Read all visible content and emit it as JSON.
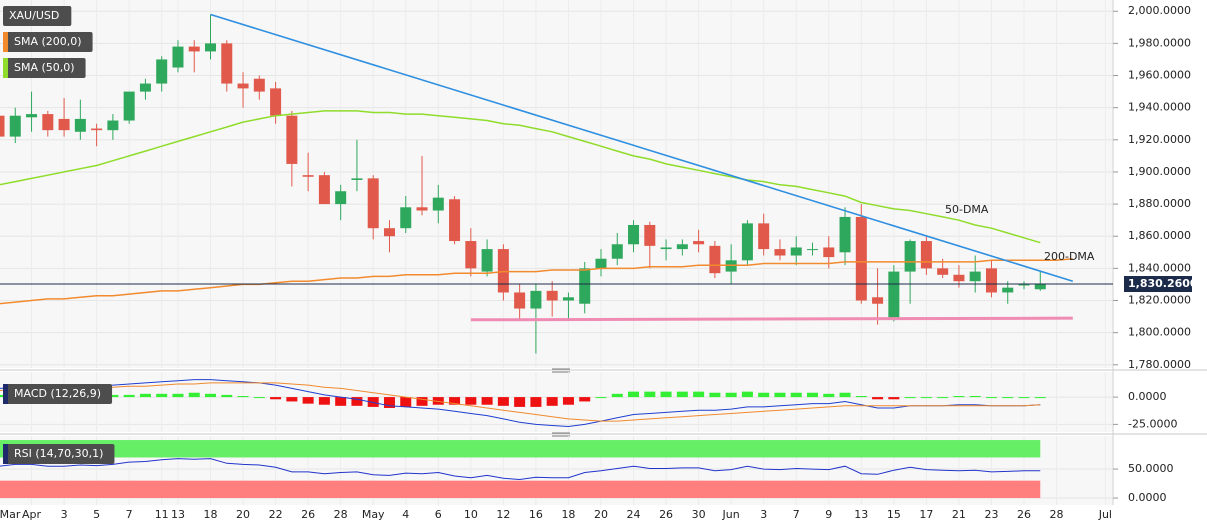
{
  "chart_data": [
    {
      "type": "candlestick",
      "symbol": "XAU/USD",
      "categories": [
        "Mar",
        null,
        "Apr",
        null,
        "3",
        null,
        "5",
        null,
        "7",
        null,
        "11",
        "13",
        null,
        "18",
        null,
        "20",
        null,
        "22",
        null,
        "26",
        null,
        "28",
        null,
        "May",
        null,
        "4",
        null,
        "6",
        null,
        "10",
        null,
        "12",
        null,
        "16",
        null,
        "18",
        null,
        "20",
        null,
        "24",
        null,
        "26",
        null,
        "30",
        null,
        "Jun",
        null,
        "3",
        null,
        "7",
        null,
        "9",
        null,
        "13",
        null,
        "15",
        null,
        "17",
        null,
        "21",
        null,
        "23",
        null,
        "26",
        null,
        "28",
        null,
        null,
        "Jul"
      ],
      "open": [
        1935,
        1922,
        1934,
        1936,
        1933,
        1925,
        1927,
        1926,
        1932,
        1950,
        1955,
        1965,
        1978,
        1975,
        1980,
        1955,
        1958,
        1952,
        1935,
        1898,
        1898,
        1880,
        1895,
        1896,
        1865,
        1865,
        1878,
        1876,
        1883,
        1857,
        1838,
        1852,
        1825,
        1815,
        1826,
        1820,
        1818,
        1840,
        1846,
        1855,
        1867,
        1852,
        1852,
        1857,
        1854,
        1838,
        1845,
        1868,
        1852,
        1848,
        1852,
        1853,
        1850,
        1872,
        1822,
        1808,
        1838,
        1857,
        1840,
        1836,
        1832,
        1840,
        1825,
        1830,
        1827,
        null,
        null,
        null,
        null
      ],
      "high": [
        1938,
        1940,
        1950,
        1938,
        1946,
        1945,
        1930,
        1936,
        1950,
        1958,
        1972,
        1982,
        1982,
        1998,
        1982,
        1962,
        1960,
        1956,
        1938,
        1912,
        1900,
        1892,
        1920,
        1898,
        1870,
        1885,
        1910,
        1892,
        1885,
        1865,
        1858,
        1855,
        1830,
        1830,
        1832,
        1825,
        1844,
        1852,
        1862,
        1870,
        1869,
        1858,
        1858,
        1864,
        1857,
        1855,
        1870,
        1874,
        1858,
        1860,
        1856,
        1860,
        1878,
        1880,
        1840,
        1842,
        1858,
        1860,
        1846,
        1842,
        1848,
        1845,
        1832,
        1832,
        1838,
        null,
        null,
        null,
        null
      ],
      "low": [
        1915,
        1918,
        1925,
        1922,
        1922,
        1920,
        1916,
        1920,
        1930,
        1945,
        1950,
        1962,
        1962,
        1970,
        1950,
        1940,
        1945,
        1930,
        1891,
        1888,
        1880,
        1870,
        1888,
        1858,
        1850,
        1862,
        1873,
        1868,
        1855,
        1835,
        1835,
        1820,
        1808,
        1787,
        1810,
        1808,
        1812,
        1835,
        1842,
        1850,
        1840,
        1845,
        1848,
        1850,
        1834,
        1830,
        1842,
        1848,
        1845,
        1842,
        1848,
        1840,
        1842,
        1818,
        1805,
        1807,
        1818,
        1836,
        1834,
        1828,
        1825,
        1822,
        1818,
        1827,
        1826,
        null,
        null,
        null,
        null
      ],
      "close": [
        1922,
        1935,
        1936,
        1926,
        1926,
        1933,
        1926,
        1932,
        1950,
        1955,
        1970,
        1978,
        1975,
        1980,
        1955,
        1952,
        1950,
        1935,
        1905,
        1897,
        1880,
        1888,
        1896,
        1865,
        1860,
        1878,
        1876,
        1884,
        1857,
        1840,
        1852,
        1825,
        1815,
        1826,
        1820,
        1822,
        1840,
        1846,
        1855,
        1867,
        1854,
        1853,
        1855,
        1855,
        1837,
        1845,
        1868,
        1852,
        1848,
        1853,
        1852,
        1847,
        1872,
        1820,
        1818,
        1838,
        1857,
        1840,
        1836,
        1832,
        1838,
        1825,
        1828,
        1830,
        1830,
        null,
        null,
        null,
        null
      ],
      "up_color": "#2ea85c",
      "down_color": "#e0594b",
      "overlays": [
        {
          "name": "SMA (200,0)",
          "color": "#f28a2e",
          "values": [
            1818,
            1819,
            1820,
            1821,
            1821,
            1822,
            1823,
            1823,
            1824,
            1825,
            1826,
            1826,
            1827,
            1828,
            1829,
            1830,
            1830,
            1831,
            1832,
            1832,
            1833,
            1834,
            1834,
            1835,
            1835,
            1836,
            1836,
            1836,
            1837,
            1837,
            1837,
            1838,
            1838,
            1838,
            1839,
            1839,
            1839,
            1840,
            1840,
            1840,
            1841,
            1841,
            1841,
            1842,
            1842,
            1842,
            1842,
            1843,
            1843,
            1843,
            1843,
            1843,
            1844,
            1844,
            1844,
            1844,
            1844,
            1844,
            1844,
            1844,
            1844,
            1845,
            1845,
            1845,
            1845,
            1845,
            1846,
            null,
            null
          ]
        },
        {
          "name": "SMA (50,0)",
          "color": "#8fdc2a",
          "values": [
            1892,
            1894,
            1896,
            1898,
            1900,
            1902,
            1904,
            1907,
            1910,
            1913,
            1916,
            1919,
            1922,
            1925,
            1928,
            1931,
            1933,
            1935,
            1936,
            1937,
            1938,
            1938,
            1938,
            1937,
            1937,
            1936,
            1936,
            1935,
            1934,
            1933,
            1932,
            1930,
            1929,
            1927,
            1925,
            1922,
            1919,
            1916,
            1913,
            1910,
            1908,
            1905,
            1903,
            1901,
            1899,
            1897,
            1895,
            1894,
            1892,
            1891,
            1889,
            1887,
            1885,
            1881,
            1879,
            1877,
            1876,
            1874,
            1872,
            1870,
            1867,
            1865,
            1862,
            1859,
            1856,
            null,
            null,
            null,
            null
          ]
        }
      ],
      "trendlines": [
        {
          "color": "#2f8fe0",
          "points": [
            [
              13,
              1998
            ],
            [
              66,
              1832
            ]
          ]
        },
        {
          "color": "#f08cb4",
          "points": [
            [
              29,
              1808
            ],
            [
              66,
              1809
            ]
          ]
        }
      ],
      "annotations": [
        {
          "text": "50-DMA",
          "color": "#8fdc2a"
        },
        {
          "text": "200-DMA",
          "color": "#f28a2e"
        }
      ],
      "last_price": {
        "value": 1830.26,
        "label": "1,830.2600"
      },
      "last_price_color": "#1c2b4a",
      "ylim": [
        1778,
        2007
      ],
      "yticks": [
        {
          "value": 1780,
          "label": "1,780.0000"
        },
        {
          "value": 1800,
          "label": "1,800.0000"
        },
        {
          "value": 1820,
          "label": "1,820.0000"
        },
        {
          "value": 1840,
          "label": "1,840.0000"
        },
        {
          "value": 1860,
          "label": "1,860.0000"
        },
        {
          "value": 1880,
          "label": "1,880.0000"
        },
        {
          "value": 1900,
          "label": "1,900.0000"
        },
        {
          "value": 1920,
          "label": "1,920.0000"
        },
        {
          "value": 1940,
          "label": "1,940.0000"
        },
        {
          "value": 1960,
          "label": "1,960.0000"
        },
        {
          "value": 1980,
          "label": "1,980.0000"
        },
        {
          "value": 2000,
          "label": "2,000.0000"
        }
      ],
      "grid": true
    },
    {
      "type": "macd",
      "title": "MACD (12,26,9)",
      "title_color": "#1f2a6b",
      "histogram": {
        "up_color": "#33ee33",
        "down_color": "#ee1111",
        "values": [
          2,
          2,
          3,
          2,
          2,
          1,
          1,
          2,
          2,
          3,
          3,
          3,
          4,
          3,
          2,
          1,
          0,
          -2,
          -4,
          -6,
          -7,
          -8,
          -8,
          -9,
          -10,
          -9,
          -8,
          -7,
          -7,
          -7,
          -7,
          -8,
          -9,
          -9,
          -8,
          -7,
          -4,
          0,
          3,
          5,
          5,
          5,
          5,
          5,
          4,
          4,
          5,
          4,
          4,
          4,
          4,
          3,
          4,
          1,
          -2,
          -2,
          0,
          0,
          0,
          1,
          1,
          0,
          0,
          0,
          0,
          null,
          null,
          null,
          null
        ]
      },
      "series": [
        {
          "color": "#1f3fd0",
          "values": [
            8,
            9,
            10,
            10,
            10,
            10,
            10,
            11,
            12,
            13,
            14,
            15,
            16,
            16,
            15,
            14,
            13,
            11,
            8,
            5,
            2,
            0,
            -2,
            -5,
            -8,
            -9,
            -10,
            -11,
            -13,
            -15,
            -17,
            -20,
            -23,
            -25,
            -26,
            -27,
            -25,
            -22,
            -19,
            -16,
            -15,
            -14,
            -13,
            -12,
            -12,
            -11,
            -9,
            -9,
            -8,
            -7,
            -6,
            -6,
            -4,
            -7,
            -10,
            -10,
            -8,
            -8,
            -8,
            -7,
            -7,
            -8,
            -8,
            -8,
            -7,
            null,
            null,
            null,
            null
          ]
        },
        {
          "color": "#f08a2e",
          "values": [
            6,
            7,
            7,
            8,
            8,
            9,
            9,
            9,
            10,
            10,
            11,
            12,
            12,
            13,
            13,
            13,
            13,
            13,
            12,
            11,
            9,
            8,
            6,
            4,
            2,
            0,
            -2,
            -4,
            -6,
            -8,
            -10,
            -12,
            -14,
            -16,
            -18,
            -20,
            -21,
            -22,
            -22,
            -21,
            -20,
            -19,
            -18,
            -17,
            -16,
            -15,
            -14,
            -13,
            -12,
            -11,
            -10,
            -9,
            -8,
            -8,
            -8,
            -8,
            -8,
            -8,
            -8,
            -8,
            -8,
            -8,
            -8,
            -8,
            -7,
            null,
            null,
            null,
            null
          ]
        }
      ],
      "ylim": [
        -32,
        23
      ],
      "yticks": [
        {
          "value": 0,
          "label": "0.0000"
        },
        {
          "value": -25,
          "label": "-25.0000"
        }
      ],
      "grid": true
    },
    {
      "type": "rsi",
      "title": "RSI (14,70,30,1)",
      "title_color": "#1f2a6b",
      "color": "#2233cc",
      "bands": [
        {
          "from": 70,
          "to": 100,
          "color": "#66ee66"
        },
        {
          "from": 0,
          "to": 30,
          "color": "#ff7f7f"
        }
      ],
      "values": [
        55,
        58,
        58,
        55,
        55,
        57,
        56,
        58,
        62,
        63,
        66,
        68,
        67,
        68,
        60,
        58,
        57,
        53,
        45,
        45,
        42,
        44,
        45,
        40,
        39,
        43,
        42,
        44,
        38,
        35,
        39,
        34,
        32,
        36,
        35,
        35,
        44,
        47,
        51,
        55,
        51,
        51,
        52,
        52,
        47,
        49,
        55,
        50,
        49,
        51,
        50,
        49,
        55,
        42,
        41,
        48,
        53,
        49,
        48,
        47,
        48,
        45,
        46,
        47,
        47,
        null,
        null,
        null,
        null
      ],
      "ylim": [
        -12,
        107
      ],
      "yticks": [
        {
          "value": 50,
          "label": "50.0000"
        },
        {
          "value": 0,
          "label": "0.0000"
        }
      ],
      "grid": true
    }
  ]
}
